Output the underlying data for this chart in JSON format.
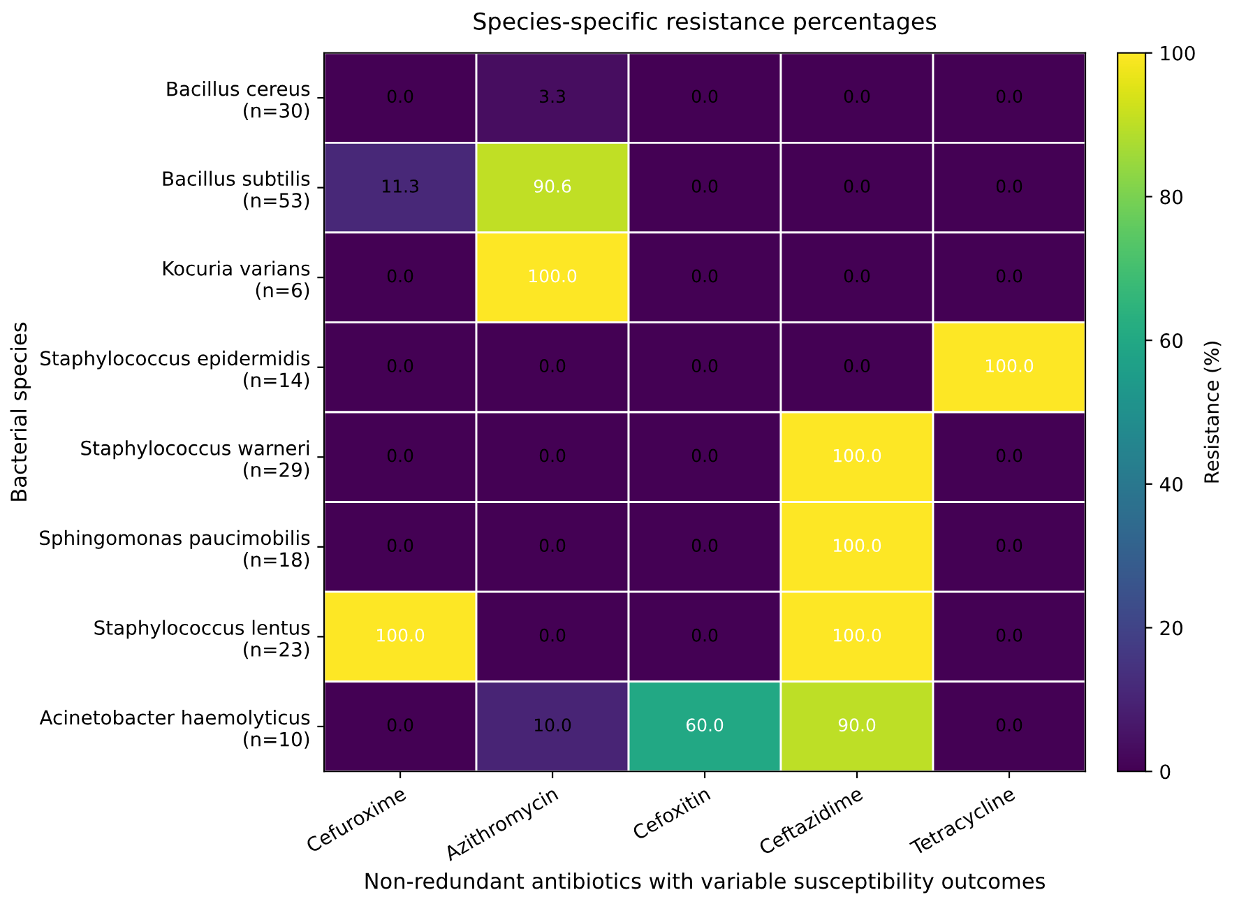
{
  "chart_data": {
    "type": "heatmap",
    "title": "Species-specific resistance percentages",
    "xlabel": "Non-redundant antibiotics with variable susceptibility outcomes",
    "ylabel": "Bacterial species",
    "clabel": "Resistance (%)",
    "categories": [
      "Cefuroxime",
      "Azithromycin",
      "Cefoxitin",
      "Ceftazidime",
      "Tetracycline"
    ],
    "y_categories": [
      "Bacillus cereus\n(n=30)",
      "Bacillus subtilis\n(n=53)",
      "Kocuria varians\n(n=6)",
      "Staphylococcus epidermidis\n(n=14)",
      "Staphylococcus warneri\n(n=29)",
      "Sphingomonas paucimobilis\n(n=18)",
      "Staphylococcus lentus\n(n=23)",
      "Acinetobacter haemolyticus\n(n=10)"
    ],
    "cells": [
      [
        0,
        3.3,
        0,
        0,
        0
      ],
      [
        11.3,
        90.6,
        0,
        0,
        0
      ],
      [
        0,
        100,
        0,
        0,
        0
      ],
      [
        0,
        0,
        0,
        0,
        100
      ],
      [
        0,
        0,
        0,
        100,
        0
      ],
      [
        0,
        0,
        0,
        100,
        0
      ],
      [
        100,
        0,
        0,
        100,
        0
      ],
      [
        0,
        10,
        60,
        90,
        0
      ]
    ],
    "cell_labels": [
      [
        "0.0",
        "3.3",
        "0.0",
        "0.0",
        "0.0"
      ],
      [
        "11.3",
        "90.6",
        "0.0",
        "0.0",
        "0.0"
      ],
      [
        "0.0",
        "100.0",
        "0.0",
        "0.0",
        "0.0"
      ],
      [
        "0.0",
        "0.0",
        "0.0",
        "0.0",
        "100.0"
      ],
      [
        "0.0",
        "0.0",
        "0.0",
        "100.0",
        "0.0"
      ],
      [
        "0.0",
        "0.0",
        "0.0",
        "100.0",
        "0.0"
      ],
      [
        "100.0",
        "0.0",
        "0.0",
        "100.0",
        "0.0"
      ],
      [
        "0.0",
        "10.0",
        "60.0",
        "90.0",
        "0.0"
      ]
    ],
    "clim": [
      0,
      100
    ],
    "cticks": [
      0,
      20,
      40,
      60,
      80,
      100
    ]
  }
}
